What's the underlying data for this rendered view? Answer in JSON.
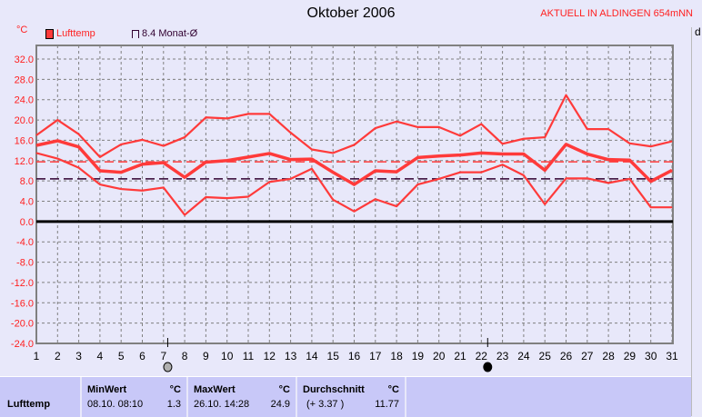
{
  "header": {
    "title": "Oktober 2006",
    "station": "AKTUELL IN ALDINGEN 654mNN",
    "right_label": "d"
  },
  "chart_data": {
    "type": "line",
    "title": "Oktober 2006",
    "ylabel": "°C",
    "ylim": [
      -24,
      32
    ],
    "yticks": [
      "32.0",
      "28.0",
      "24.0",
      "20.0",
      "16.0",
      "12.0",
      "8.0",
      "4.0",
      "0.0",
      "-4.0",
      "-8.0",
      "-12.0",
      "-16.0",
      "-20.0",
      "-24.0"
    ],
    "x": [
      1,
      2,
      3,
      4,
      5,
      6,
      7,
      8,
      9,
      10,
      11,
      12,
      13,
      14,
      15,
      16,
      17,
      18,
      19,
      20,
      21,
      22,
      23,
      24,
      25,
      26,
      27,
      28,
      29,
      30,
      31
    ],
    "grid": true,
    "legend": [
      {
        "label": "Lufttemp",
        "color": "#ff3a3a"
      },
      {
        "label": "8.4 Monat-Ø",
        "color": "#300030"
      }
    ],
    "series": [
      {
        "role": "max",
        "color": "#ff3a3a",
        "values": [
          17.0,
          20.0,
          17.2,
          12.7,
          15.2,
          16.1,
          14.9,
          16.6,
          20.5,
          20.3,
          21.2,
          21.2,
          17.5,
          14.2,
          13.5,
          15.1,
          18.4,
          19.7,
          18.6,
          18.6,
          16.9,
          19.2,
          15.3,
          16.3,
          16.6,
          24.9,
          18.2,
          18.2,
          15.4,
          14.8,
          15.8
        ]
      },
      {
        "role": "mean",
        "color": "#ff3a3a",
        "values": [
          15.0,
          15.9,
          14.7,
          10.0,
          9.7,
          11.3,
          11.6,
          8.7,
          11.7,
          12.0,
          12.7,
          13.4,
          12.2,
          12.3,
          9.7,
          7.3,
          10.0,
          9.8,
          12.6,
          12.9,
          13.1,
          13.5,
          13.3,
          13.3,
          10.1,
          15.2,
          13.3,
          12.2,
          12.1,
          7.9,
          10.1
        ]
      },
      {
        "role": "min",
        "color": "#ff3a3a",
        "values": [
          13.5,
          12.4,
          10.6,
          7.3,
          6.4,
          6.1,
          6.7,
          1.3,
          4.8,
          4.6,
          4.9,
          7.8,
          8.4,
          10.4,
          4.3,
          2.0,
          4.4,
          3.0,
          7.3,
          8.4,
          9.7,
          9.7,
          11.2,
          9.1,
          3.4,
          8.5,
          8.5,
          7.6,
          8.4,
          2.8,
          2.8
        ]
      }
    ],
    "reference_lines": [
      {
        "value": 11.77,
        "color": "#ff3a3a"
      },
      {
        "value": 8.4,
        "color": "#300030"
      }
    ],
    "moon_phases": [
      {
        "day": 7.2,
        "phase": "full-moon"
      },
      {
        "day": 22.3,
        "phase": "new-moon"
      }
    ]
  },
  "legend": {
    "item1": "Lufttemp",
    "item2": "8.4 Monat-Ø",
    "unit": "°C"
  },
  "table": {
    "row_label": "Lufttemp",
    "min": {
      "header": "MinWert",
      "unit": "°C",
      "time": "08.10.  08:10",
      "value": "1.3"
    },
    "max": {
      "header": "MaxWert",
      "unit": "°C",
      "time": "26.10.  14:28",
      "value": "24.9"
    },
    "avg": {
      "header": "Durchschnitt",
      "unit": "°C",
      "delta": "(+ 3.37 )",
      "value": "11.77"
    }
  }
}
